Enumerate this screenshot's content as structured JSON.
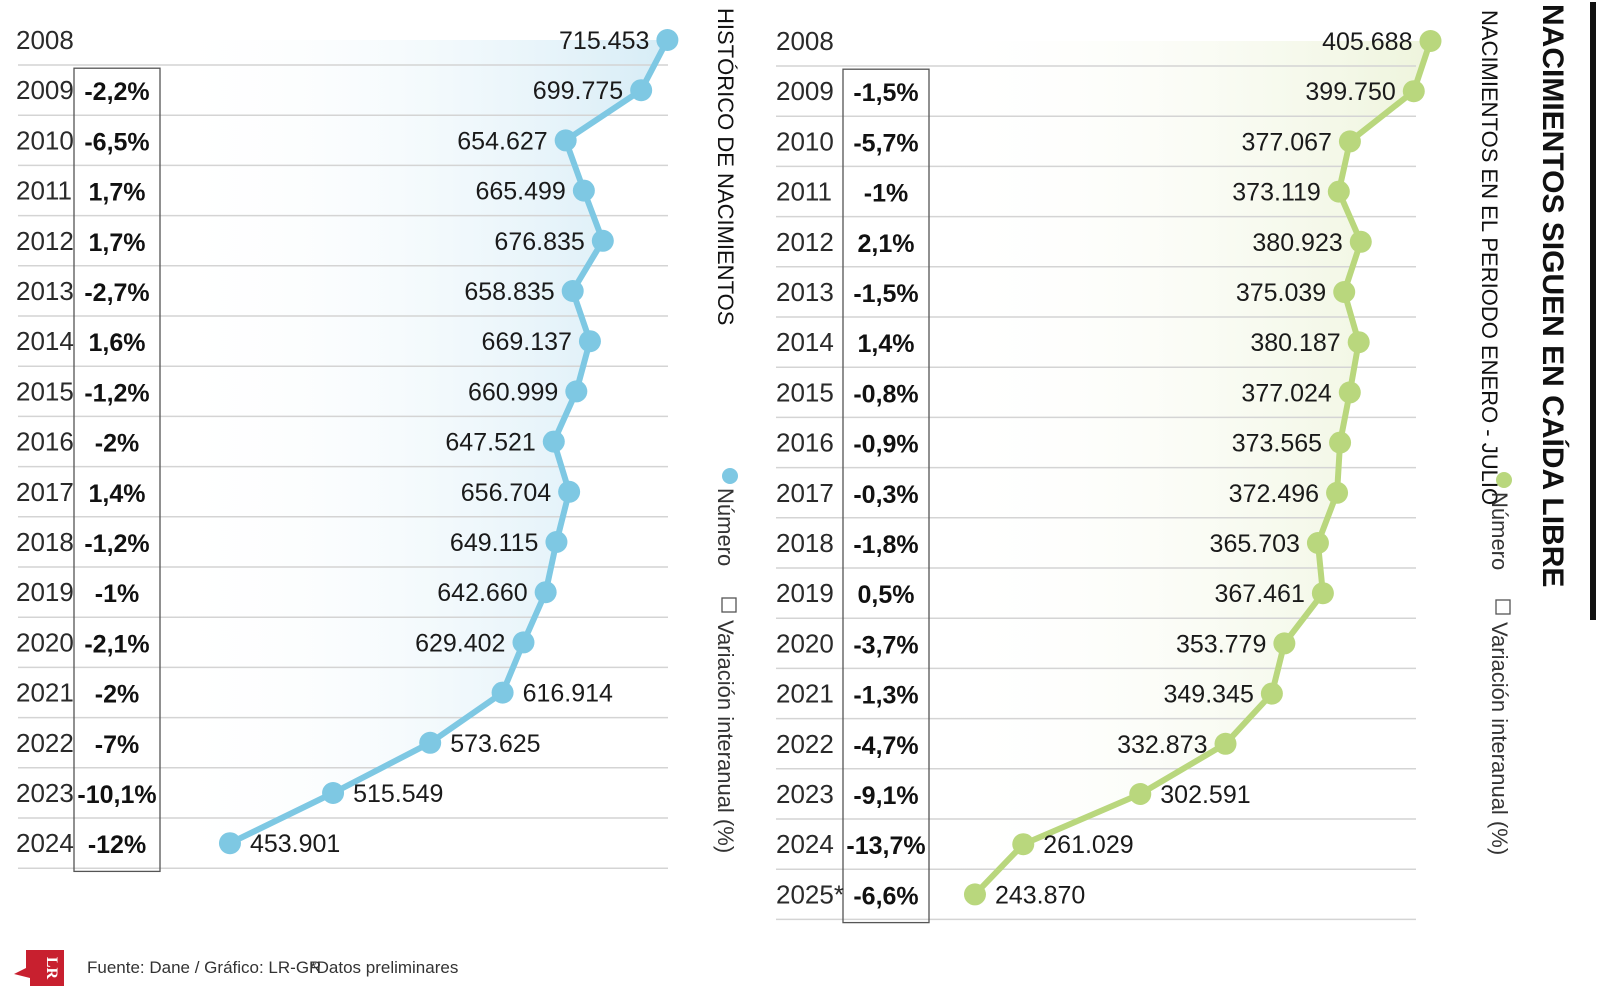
{
  "title": "NACIMIENTOS SIGUEN EN CAÍDA LIBRE",
  "footer": {
    "source": "Fuente: Dane / Gráfico: LR-GR",
    "note": "*Datos preliminares",
    "logo_text": "LR"
  },
  "legend": {
    "number": "Número",
    "variation": "Variación interanual (%)"
  },
  "colors": {
    "left_series": "#7ec8e3",
    "right_series": "#b9d77d",
    "logo": "#c8202f"
  },
  "chart_data": [
    {
      "type": "line",
      "title": "HISTÓRICO DE NACIMIENTOS",
      "x": [
        "2008",
        "2009",
        "2010",
        "2011",
        "2012",
        "2013",
        "2014",
        "2015",
        "2016",
        "2017",
        "2018",
        "2019",
        "2020",
        "2021",
        "2022",
        "2023",
        "2024"
      ],
      "series": [
        {
          "name": "Número",
          "values": [
            715453,
            699775,
            654627,
            665499,
            676835,
            658835,
            669137,
            660999,
            647521,
            656704,
            649115,
            642660,
            629402,
            616914,
            573625,
            515549,
            453901
          ],
          "labels": [
            "715.453",
            "699.775",
            "654.627",
            "665.499",
            "676.835",
            "658.835",
            "669.137",
            "660.999",
            "647.521",
            "656.704",
            "649.115",
            "642.660",
            "629.402",
            "616.914",
            "573.625",
            "515.549",
            "453.901"
          ]
        },
        {
          "name": "Variación interanual (%)",
          "values": [
            null,
            -2.2,
            -6.5,
            1.7,
            1.7,
            -2.7,
            1.6,
            -1.2,
            -2,
            1.4,
            -1.2,
            -1,
            -2.1,
            -2,
            -7,
            -10.1,
            -12
          ],
          "labels": [
            "",
            "-2,2%",
            "-6,5%",
            "1,7%",
            "1,7%",
            "-2,7%",
            "1,6%",
            "-1,2%",
            "-2%",
            "1,4%",
            "-1,2%",
            "-1%",
            "-2,1%",
            "-2%",
            "-7%",
            "-10,1%",
            "-12%"
          ]
        }
      ],
      "xlim": [
        430000,
        720000
      ]
    },
    {
      "type": "line",
      "title": "NACIMIENTOS EN EL PERIODO ENERO - JULIO",
      "x": [
        "2008",
        "2009",
        "2010",
        "2011",
        "2012",
        "2013",
        "2014",
        "2015",
        "2016",
        "2017",
        "2018",
        "2019",
        "2020",
        "2021",
        "2022",
        "2023",
        "2024",
        "2025*"
      ],
      "series": [
        {
          "name": "Número",
          "values": [
            405688,
            399750,
            377067,
            373119,
            380923,
            375039,
            380187,
            377024,
            373565,
            372496,
            365703,
            367461,
            353779,
            349345,
            332873,
            302591,
            261029,
            243870
          ],
          "labels": [
            "405.688",
            "399.750",
            "377.067",
            "373.119",
            "380.923",
            "375.039",
            "380.187",
            "377.024",
            "373.565",
            "372.496",
            "365.703",
            "367.461",
            "353.779",
            "349.345",
            "332.873",
            "302.591",
            "261.029",
            "243.870"
          ]
        },
        {
          "name": "Variación interanual (%)",
          "values": [
            null,
            -1.5,
            -5.7,
            -1,
            2.1,
            -1.5,
            1.4,
            -0.8,
            -0.9,
            -0.3,
            -1.8,
            0.5,
            -3.7,
            -1.3,
            -4.7,
            -9.1,
            -13.7,
            -6.6
          ],
          "labels": [
            "",
            "-1,5%",
            "-5,7%",
            "-1%",
            "2,1%",
            "-1,5%",
            "1,4%",
            "-0,8%",
            "-0,9%",
            "-0,3%",
            "-1,8%",
            "0,5%",
            "-3,7%",
            "-1,3%",
            "-4,7%",
            "-9,1%",
            "-13,7%",
            "-6,6%"
          ]
        }
      ],
      "xlim": [
        235000,
        408000
      ]
    }
  ]
}
